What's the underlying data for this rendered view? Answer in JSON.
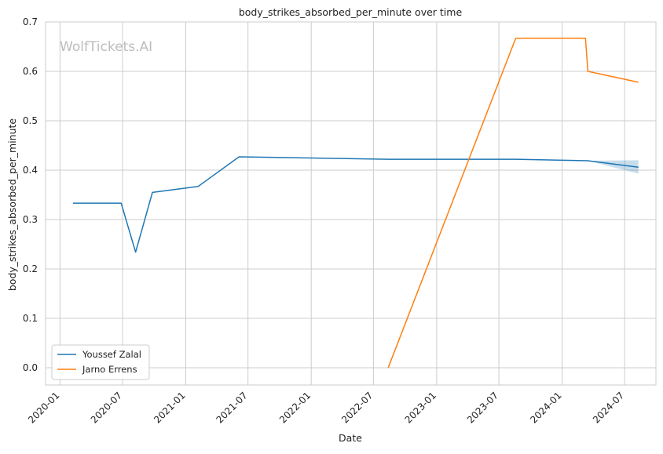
{
  "chart_data": {
    "type": "line",
    "title": "body_strikes_absorbed_per_minute over time",
    "xlabel": "Date",
    "ylabel": "body_strikes_absorbed_per_minute",
    "watermark": "WolfTickets.AI",
    "xlim": [
      "2019-11-20",
      "2024-09-30"
    ],
    "ylim": [
      -0.035,
      0.7
    ],
    "x_ticks": [
      "2020-01",
      "2020-07",
      "2021-01",
      "2021-07",
      "2022-01",
      "2022-07",
      "2023-01",
      "2023-07",
      "2024-01",
      "2024-07"
    ],
    "y_ticks": [
      0.0,
      0.1,
      0.2,
      0.3,
      0.4,
      0.5,
      0.6,
      0.7
    ],
    "y_tick_labels": [
      "0.0",
      "0.1",
      "0.2",
      "0.3",
      "0.4",
      "0.5",
      "0.6",
      "0.7"
    ],
    "grid": true,
    "legend_position": "lower-left",
    "series": [
      {
        "name": "Youssef Zalal",
        "color": "#1f77b4",
        "points": [
          {
            "x": "2020-02-08",
            "y": 0.333
          },
          {
            "x": "2020-06-27",
            "y": 0.333
          },
          {
            "x": "2020-08-08",
            "y": 0.234
          },
          {
            "x": "2020-09-26",
            "y": 0.355
          },
          {
            "x": "2021-02-06",
            "y": 0.367
          },
          {
            "x": "2021-06-05",
            "y": 0.427
          },
          {
            "x": "2022-08-13",
            "y": 0.422
          },
          {
            "x": "2023-08-19",
            "y": 0.422
          },
          {
            "x": "2024-03-16",
            "y": 0.419
          },
          {
            "x": "2024-08-10",
            "y": 0.406
          }
        ],
        "confidence_band": [
          {
            "x": "2024-03-16",
            "low": 0.419,
            "high": 0.419
          },
          {
            "x": "2024-08-10",
            "low": 0.393,
            "high": 0.42
          }
        ]
      },
      {
        "name": "Jarno Errens",
        "color": "#ff7f0e",
        "points": [
          {
            "x": "2022-08-13",
            "y": 0.0
          },
          {
            "x": "2023-08-19",
            "y": 0.667
          },
          {
            "x": "2024-03-09",
            "y": 0.667
          },
          {
            "x": "2024-03-16",
            "y": 0.6
          },
          {
            "x": "2024-08-10",
            "y": 0.578
          }
        ]
      }
    ]
  }
}
